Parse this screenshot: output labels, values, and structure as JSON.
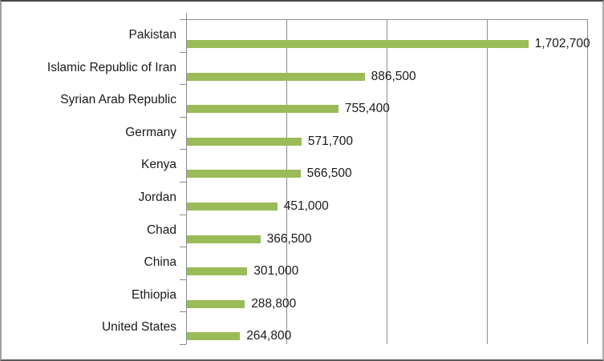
{
  "chart_data": {
    "type": "bar",
    "orientation": "horizontal",
    "title": "",
    "xlabel": "",
    "ylabel": "",
    "categories": [
      "Pakistan",
      "Islamic Republic of Iran",
      "Syrian Arab Republic",
      "Germany",
      "Kenya",
      "Jordan",
      "Chad",
      "China",
      "Ethiopia",
      "United States"
    ],
    "values": [
      1702700,
      886500,
      755400,
      571700,
      566500,
      451000,
      366500,
      301000,
      288800,
      264800
    ],
    "value_labels": [
      "1,702,700",
      "886,500",
      "755,400",
      "571,700",
      "566,500",
      "451,000",
      "366,500",
      "301,000",
      "288,800",
      "264,800"
    ],
    "xlim": [
      0,
      2000000
    ],
    "gridline_interval": 500000,
    "grid": true,
    "legend": false,
    "value_axis_labels_visible": false,
    "colors": {
      "bar": "#9bbb59",
      "gridline": "#8c8c8c",
      "axis": "#8c8c8c",
      "text": "#1a1a1a"
    }
  }
}
